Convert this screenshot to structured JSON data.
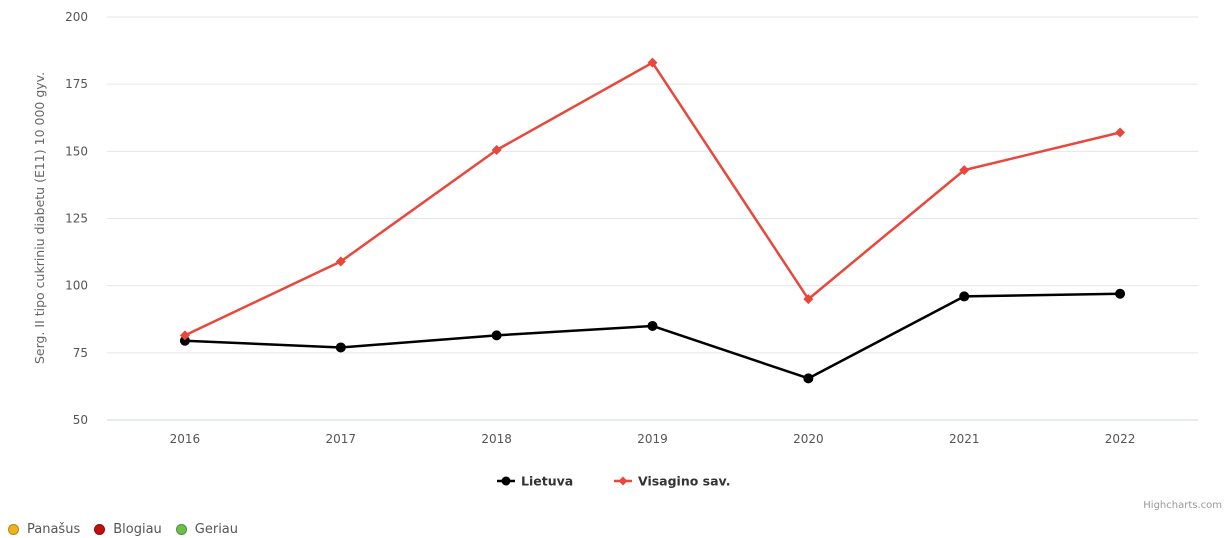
{
  "chart_data": {
    "type": "line",
    "x": [
      "2016",
      "2017",
      "2018",
      "2019",
      "2020",
      "2021",
      "2022"
    ],
    "ylabel": "Serg. II tipo cukriniu diabetu (E11) 10 000 gyv.",
    "ylim": [
      50,
      200
    ],
    "yticks": [
      "50",
      "75",
      "100",
      "125",
      "150",
      "175",
      "200"
    ],
    "grid": true,
    "legend_position": "bottom-center",
    "series": [
      {
        "name": "Lietuva",
        "color": "#000000",
        "marker": "circle",
        "values": [
          79.5,
          77,
          81.5,
          85,
          65.5,
          96,
          97
        ]
      },
      {
        "name": "Visagino sav.",
        "color": "#e8483c",
        "marker": "diamond",
        "values": [
          81.5,
          109,
          150.5,
          183,
          95,
          143,
          157
        ]
      }
    ],
    "credits": "Highcharts.com"
  },
  "status_legend": [
    {
      "label": "Panašus",
      "color": "#f0b31a"
    },
    {
      "label": "Blogiau",
      "color": "#c40d0d"
    },
    {
      "label": "Geriau",
      "color": "#6dbf4b"
    }
  ]
}
